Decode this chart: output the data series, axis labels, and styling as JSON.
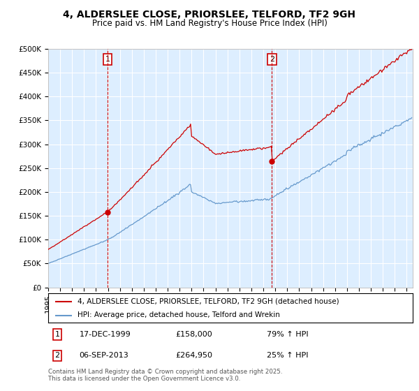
{
  "title": "4, ALDERSLEE CLOSE, PRIORSLEE, TELFORD, TF2 9GH",
  "subtitle": "Price paid vs. HM Land Registry's House Price Index (HPI)",
  "property_label": "4, ALDERSLEE CLOSE, PRIORSLEE, TELFORD, TF2 9GH (detached house)",
  "hpi_label": "HPI: Average price, detached house, Telford and Wrekin",
  "sale1_date": "17-DEC-1999",
  "sale1_price": 158000,
  "sale1_hpi": "79% ↑ HPI",
  "sale2_date": "06-SEP-2013",
  "sale2_price": 264950,
  "sale2_hpi": "25% ↑ HPI",
  "copyright_text": "Contains HM Land Registry data © Crown copyright and database right 2025.\nThis data is licensed under the Open Government Licence v3.0.",
  "property_color": "#cc0000",
  "hpi_color": "#6699cc",
  "vline_color": "#cc0000",
  "background_color": "#ddeeff",
  "ylim": [
    0,
    500000
  ],
  "yticks": [
    0,
    50000,
    100000,
    150000,
    200000,
    250000,
    300000,
    350000,
    400000,
    450000,
    500000
  ],
  "xlim_start": 1995.0,
  "xlim_end": 2025.5
}
